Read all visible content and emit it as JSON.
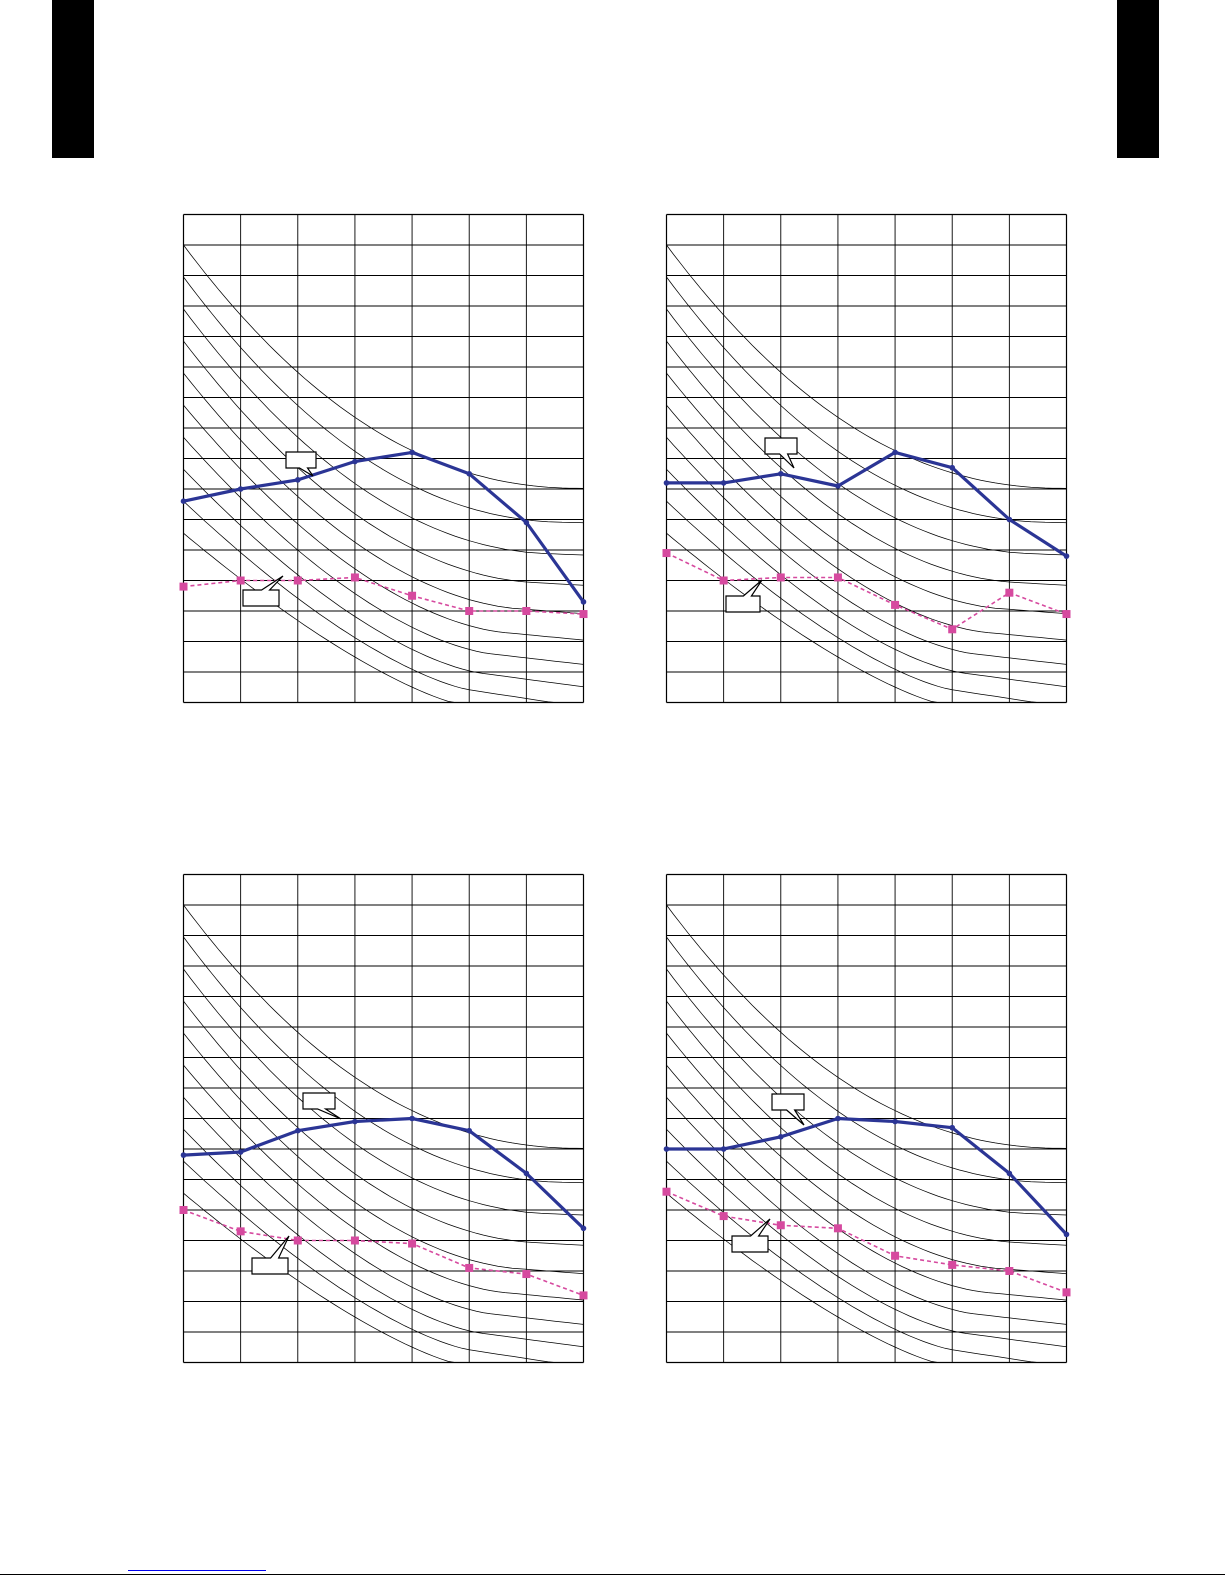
{
  "colors": {
    "blue_series": "#2b3595",
    "pink_series": "#d64a9f",
    "grid": "#000000",
    "tab": "#000000"
  },
  "chart_data": [
    {
      "type": "line",
      "grid_columns": 7,
      "grid_rows": 16,
      "curve_family_count": 10,
      "series": [
        {
          "style": "solid-blue",
          "values": [
            6.6,
            7.0,
            7.3,
            7.9,
            8.2,
            7.5,
            5.9,
            3.3
          ]
        },
        {
          "style": "dashed-pink",
          "values": [
            3.8,
            4.0,
            4.0,
            4.1,
            3.5,
            3.0,
            3.0,
            2.9
          ]
        }
      ]
    },
    {
      "type": "line",
      "grid_columns": 7,
      "grid_rows": 16,
      "curve_family_count": 10,
      "series": [
        {
          "style": "solid-blue",
          "values": [
            7.2,
            7.2,
            7.5,
            7.1,
            8.2,
            7.7,
            6.0,
            4.8
          ]
        },
        {
          "style": "dashed-pink",
          "values": [
            4.9,
            4.0,
            4.1,
            4.1,
            3.2,
            2.4,
            3.6,
            2.9
          ]
        }
      ]
    },
    {
      "type": "line",
      "grid_columns": 7,
      "grid_rows": 16,
      "curve_family_count": 10,
      "series": [
        {
          "style": "solid-blue",
          "values": [
            6.8,
            6.9,
            7.6,
            7.9,
            8.0,
            7.6,
            6.2,
            4.4
          ]
        },
        {
          "style": "dashed-pink",
          "values": [
            5.0,
            4.3,
            4.0,
            4.0,
            3.9,
            3.1,
            2.9,
            2.2
          ]
        }
      ]
    },
    {
      "type": "line",
      "grid_columns": 7,
      "grid_rows": 16,
      "curve_family_count": 10,
      "series": [
        {
          "style": "solid-blue",
          "values": [
            7.0,
            7.0,
            7.4,
            8.0,
            7.9,
            7.7,
            6.2,
            4.2
          ]
        },
        {
          "style": "dashed-pink",
          "values": [
            5.6,
            4.8,
            4.5,
            4.4,
            3.5,
            3.2,
            3.0,
            2.3
          ]
        }
      ]
    }
  ]
}
